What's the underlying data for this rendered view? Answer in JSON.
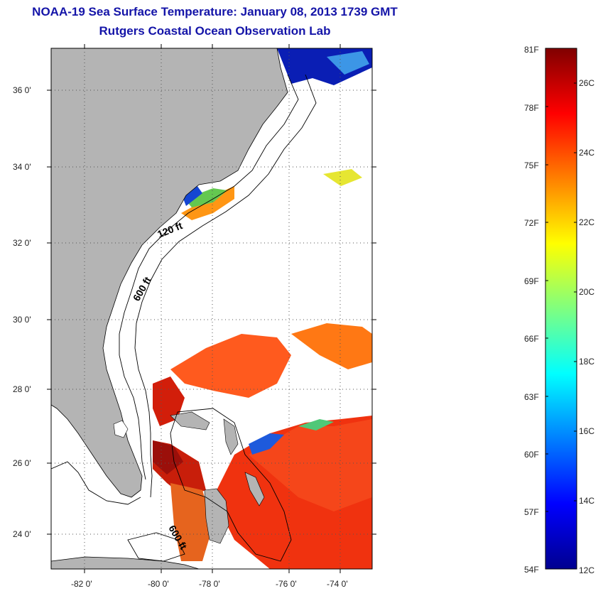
{
  "title": "NOAA-19 Sea Surface Temperature:  January 08, 2013 1739 GMT",
  "subtitle": "Rutgers Coastal Ocean Observation Lab",
  "map": {
    "lat_ticks": [
      "36 0'",
      "34 0'",
      "32 0'",
      "30 0'",
      "28 0'",
      "26 0'",
      "24 0'"
    ],
    "lon_ticks": [
      "-82 0'",
      "-80 0'",
      "-78 0'",
      "-76 0'",
      "-74 0'"
    ],
    "contour_labels": [
      "120 ft",
      "600 ft",
      "600 ft"
    ],
    "land_color": "#b4b4b4",
    "grid": true
  },
  "colorbar": {
    "fahrenheit_labels": [
      "81F",
      "78F",
      "75F",
      "72F",
      "69F",
      "66F",
      "63F",
      "60F",
      "57F",
      "54F"
    ],
    "celsius_labels": [
      "26C",
      "24C",
      "22C",
      "20C",
      "18C",
      "16C",
      "14C",
      "12C"
    ],
    "colormap": "jet",
    "range_f": [
      54,
      81
    ]
  }
}
